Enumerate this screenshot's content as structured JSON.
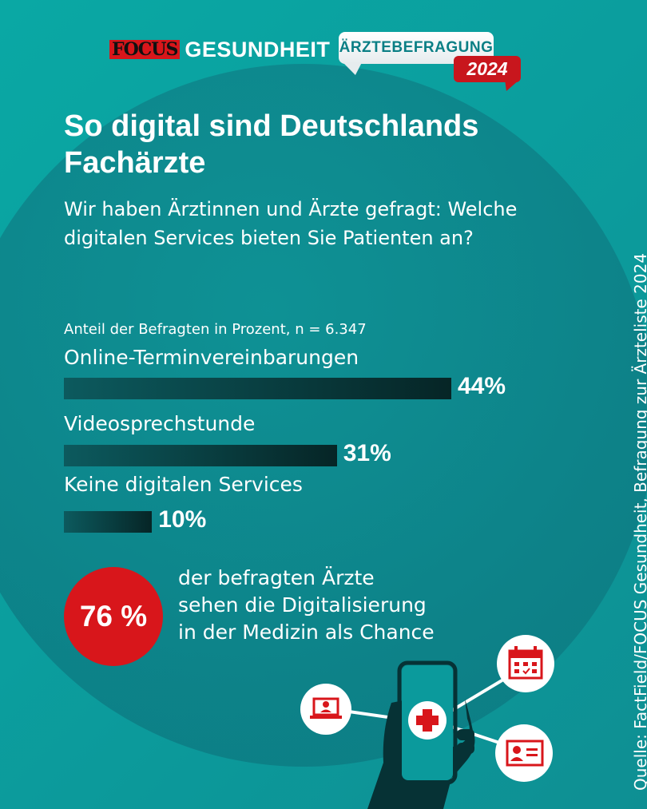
{
  "header": {
    "logo": "FOCUS",
    "brand": "GESUNDHEIT",
    "badge": "ÄRZTEBEFRAGUNG",
    "year": "2024"
  },
  "title": "So digital sind Deutschlands Fachärzte",
  "subtitle": "Wir haben Ärztinnen und Ärzte gefragt: Welche digitalen Services bieten Sie Patienten an?",
  "chart_data": {
    "type": "bar",
    "orientation": "horizontal",
    "note": "Anteil der Befragten in Prozent, n = 6.347",
    "categories": [
      "Online-Terminvereinbarungen",
      "Videosprechstunde",
      "Keine digitalen Services"
    ],
    "values": [
      44,
      31,
      10
    ],
    "value_labels": [
      "44%",
      "31%",
      "10%"
    ],
    "unit": "%"
  },
  "highlight": {
    "value": "76 %",
    "text_lines": [
      "der befragten Ärzte",
      "sehen die Digitalisierung",
      "in der Medizin als Chance"
    ]
  },
  "source": "Quelle: FactField/FOCUS Gesundheit, Befragung zur Ärzteliste 2024",
  "colors": {
    "background": "#0aa8a4",
    "bar": "#062526",
    "accent_red": "#d8161b"
  },
  "icons": [
    "laptop-icon",
    "smartphone-icon",
    "medical-cross-icon",
    "calendar-icon",
    "id-card-icon",
    "hand-icon"
  ]
}
